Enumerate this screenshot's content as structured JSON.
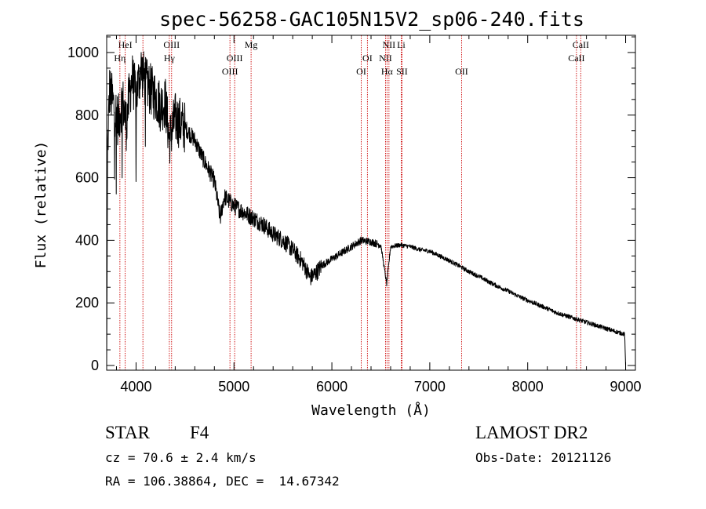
{
  "chart_data": {
    "type": "line",
    "title": "spec-56258-GAC105N15V2_sp06-240.fits",
    "xlabel": "Wavelength (Å)",
    "ylabel": "Flux (relative)",
    "xlim": [
      3700,
      9100
    ],
    "ylim": [
      -15,
      1055
    ],
    "xticks": [
      4000,
      5000,
      6000,
      7000,
      8000,
      9000
    ],
    "yticks": [
      0,
      200,
      400,
      600,
      800,
      1000
    ],
    "grid": false,
    "colors": {
      "spectrum": "#000000",
      "line_markers": "#cc0000"
    },
    "spectrum_anchors": [
      [
        3700,
        0
      ],
      [
        3710,
        700
      ],
      [
        3730,
        880
      ],
      [
        3780,
        820
      ],
      [
        3820,
        780
      ],
      [
        3860,
        850
      ],
      [
        3900,
        770
      ],
      [
        3930,
        860
      ],
      [
        3960,
        920
      ],
      [
        4000,
        860
      ],
      [
        4050,
        950
      ],
      [
        4100,
        900
      ],
      [
        4150,
        880
      ],
      [
        4200,
        860
      ],
      [
        4250,
        830
      ],
      [
        4300,
        840
      ],
      [
        4340,
        720
      ],
      [
        4400,
        790
      ],
      [
        4500,
        760
      ],
      [
        4600,
        720
      ],
      [
        4700,
        650
      ],
      [
        4800,
        590
      ],
      [
        4860,
        470
      ],
      [
        4900,
        540
      ],
      [
        5000,
        510
      ],
      [
        5100,
        490
      ],
      [
        5200,
        470
      ],
      [
        5300,
        450
      ],
      [
        5400,
        420
      ],
      [
        5500,
        400
      ],
      [
        5600,
        370
      ],
      [
        5700,
        330
      ],
      [
        5780,
        280
      ],
      [
        5850,
        300
      ],
      [
        5900,
        320
      ],
      [
        6000,
        340
      ],
      [
        6100,
        360
      ],
      [
        6200,
        380
      ],
      [
        6300,
        400
      ],
      [
        6400,
        395
      ],
      [
        6500,
        385
      ],
      [
        6560,
        260
      ],
      [
        6600,
        380
      ],
      [
        6700,
        385
      ],
      [
        6800,
        380
      ],
      [
        6900,
        370
      ],
      [
        7000,
        365
      ],
      [
        7100,
        350
      ],
      [
        7200,
        335
      ],
      [
        7300,
        318
      ],
      [
        7400,
        300
      ],
      [
        7500,
        285
      ],
      [
        7600,
        268
      ],
      [
        7700,
        252
      ],
      [
        7800,
        238
      ],
      [
        7900,
        222
      ],
      [
        8000,
        208
      ],
      [
        8100,
        195
      ],
      [
        8200,
        182
      ],
      [
        8300,
        168
      ],
      [
        8400,
        158
      ],
      [
        8500,
        148
      ],
      [
        8600,
        138
      ],
      [
        8700,
        128
      ],
      [
        8800,
        118
      ],
      [
        8900,
        108
      ],
      [
        8990,
        100
      ],
      [
        9000,
        0
      ]
    ],
    "emission_lines": [
      {
        "name": "HeI",
        "wavelength": 3889,
        "row": 0
      },
      {
        "name": "Hη",
        "wavelength": 3835,
        "row": 1
      },
      {
        "name": "SII",
        "wavelength": 4070,
        "row": 2
      },
      {
        "name": "OIII",
        "wavelength": 4363,
        "row": 0
      },
      {
        "name": "Hγ",
        "wavelength": 4340,
        "row": 1
      },
      {
        "name": "OIII",
        "wavelength": 5007,
        "row": 1
      },
      {
        "name": "OIII",
        "wavelength": 4959,
        "row": 2
      },
      {
        "name": "Mg",
        "wavelength": 5175,
        "row": 0
      },
      {
        "name": "OI",
        "wavelength": 6363,
        "row": 1
      },
      {
        "name": "OI",
        "wavelength": 6300,
        "row": 2
      },
      {
        "name": "NII",
        "wavelength": 6583,
        "row": 0
      },
      {
        "name": "Li",
        "wavelength": 6708,
        "row": 0
      },
      {
        "name": "NII",
        "wavelength": 6548,
        "row": 1
      },
      {
        "name": "Hα",
        "wavelength": 6563,
        "row": 2
      },
      {
        "name": "SII",
        "wavelength": 6716,
        "row": 2
      },
      {
        "name": "OII",
        "wavelength": 7325,
        "row": 2
      },
      {
        "name": "CaII",
        "wavelength": 8542,
        "row": 0
      },
      {
        "name": "CaII",
        "wavelength": 8498,
        "row": 1
      }
    ]
  },
  "info": {
    "class_label": "STAR",
    "subclass": "F4",
    "cz_line": "cz = 70.6 ± 2.4 km/s",
    "coords_line": "RA = 106.38864, DEC =  14.67342",
    "survey": "LAMOST DR2",
    "obs_date_line": "Obs-Date: 20121126"
  }
}
